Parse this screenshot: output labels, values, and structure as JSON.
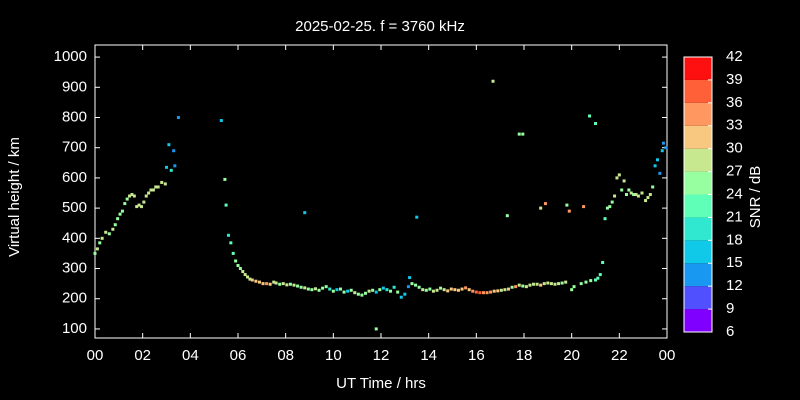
{
  "chart_data": {
    "type": "scatter",
    "title": "2025-02-25. f = 3760 kHz",
    "x_label": "UT Time / hrs",
    "y_label": "Virtual height / km",
    "colorbar_label": "SNR / dB",
    "xlim": [
      0,
      24
    ],
    "xticks": [
      {
        "value": 0,
        "label": "00"
      },
      {
        "value": 2,
        "label": "02"
      },
      {
        "value": 4,
        "label": "04"
      },
      {
        "value": 6,
        "label": "06"
      },
      {
        "value": 8,
        "label": "08"
      },
      10,
      12,
      14,
      16,
      18,
      20,
      22,
      {
        "value": 24,
        "label": "00"
      }
    ],
    "ylim": [
      70,
      1040
    ],
    "yticks": [
      100,
      200,
      300,
      400,
      500,
      600,
      700,
      800,
      900,
      1000
    ],
    "clim": [
      6,
      42
    ],
    "cticks": [
      6,
      9,
      12,
      15,
      18,
      21,
      24,
      27,
      30,
      33,
      36,
      39,
      42
    ],
    "colormap": [
      "#8000ff",
      "#5050ff",
      "#1898f0",
      "#10c8e8",
      "#30e8d0",
      "#60ffb8",
      "#98ffa0",
      "#c8e890",
      "#f8c880",
      "#ff9860",
      "#ff6038",
      "#ff1010"
    ],
    "x": [
      0,
      0.1,
      0.2,
      0.3,
      0.45,
      0.6,
      0.75,
      0.85,
      0.95,
      1.05,
      1.15,
      1.25,
      1.35,
      1.45,
      1.55,
      1.65,
      1.75,
      1.85,
      1.95,
      2.05,
      2.15,
      2.25,
      2.35,
      2.45,
      2.55,
      2.65,
      2.8,
      2.95,
      3.0,
      3.1,
      3.2,
      3.3,
      3.35,
      3.5,
      5.3,
      5.45,
      5.5,
      5.6,
      5.7,
      5.8,
      5.9,
      6.0,
      6.1,
      6.2,
      6.3,
      6.4,
      6.5,
      6.6,
      6.75,
      6.9,
      7.05,
      7.2,
      7.35,
      7.5,
      7.6,
      7.75,
      7.9,
      8.05,
      8.2,
      8.35,
      8.5,
      8.65,
      8.8,
      8.95,
      9.1,
      9.25,
      9.4,
      9.55,
      9.7,
      9.85,
      10.0,
      10.15,
      10.3,
      10.45,
      10.6,
      10.75,
      10.9,
      11.05,
      11.2,
      11.35,
      11.5,
      11.65,
      11.8,
      11.95,
      12.1,
      12.25,
      12.4,
      12.55,
      12.7,
      12.85,
      13.0,
      13.15,
      13.3,
      13.45,
      13.6,
      13.75,
      13.9,
      14.05,
      14.2,
      14.35,
      14.5,
      14.65,
      14.8,
      14.95,
      15.1,
      15.25,
      15.4,
      15.55,
      15.7,
      15.85,
      16.0,
      16.15,
      16.3,
      16.45,
      16.6,
      16.75,
      16.9,
      17.05,
      17.2,
      17.35,
      17.5,
      17.65,
      17.8,
      17.95,
      18.1,
      18.25,
      18.4,
      18.55,
      18.7,
      18.85,
      19.0,
      19.15,
      19.3,
      19.45,
      19.6,
      19.75,
      8.8,
      11.8,
      13.2,
      13.5,
      16.7,
      17.3,
      17.8,
      17.95,
      18.7,
      18.9,
      19.8,
      19.9,
      20.5,
      20.75,
      21.0,
      20.0,
      20.1,
      20.4,
      20.6,
      20.8,
      21.0,
      21.1,
      21.2,
      21.3,
      21.4,
      21.5,
      21.6,
      21.7,
      21.8,
      21.9,
      22.0,
      22.1,
      22.2,
      22.3,
      22.4,
      22.5,
      22.6,
      22.7,
      22.8,
      22.95,
      23.1,
      23.2,
      23.3,
      23.4,
      23.5,
      23.6,
      23.7,
      23.8,
      23.85,
      23.95
    ],
    "values": [
      350,
      365,
      385,
      400,
      420,
      415,
      430,
      445,
      465,
      480,
      490,
      515,
      530,
      540,
      545,
      540,
      505,
      510,
      505,
      520,
      540,
      550,
      560,
      560,
      570,
      570,
      585,
      580,
      635,
      710,
      625,
      690,
      640,
      800,
      790,
      595,
      510,
      410,
      385,
      350,
      325,
      310,
      300,
      290,
      280,
      272,
      265,
      262,
      258,
      255,
      250,
      250,
      248,
      255,
      252,
      248,
      250,
      246,
      248,
      245,
      242,
      238,
      236,
      232,
      230,
      233,
      228,
      235,
      240,
      232,
      225,
      230,
      232,
      222,
      225,
      228,
      220,
      215,
      212,
      218,
      225,
      228,
      222,
      230,
      235,
      230,
      225,
      238,
      222,
      205,
      215,
      240,
      250,
      245,
      238,
      230,
      228,
      232,
      225,
      228,
      235,
      230,
      226,
      232,
      230,
      228,
      232,
      236,
      230,
      225,
      222,
      220,
      220,
      220,
      222,
      225,
      226,
      228,
      230,
      232,
      238,
      240,
      245,
      242,
      240,
      245,
      248,
      248,
      245,
      250,
      252,
      250,
      248,
      250,
      252,
      255,
      485,
      100,
      270,
      470,
      920,
      475,
      745,
      745,
      500,
      515,
      510,
      490,
      505,
      805,
      780,
      230,
      240,
      250,
      255,
      260,
      262,
      268,
      280,
      320,
      465,
      500,
      505,
      520,
      540,
      600,
      610,
      560,
      590,
      545,
      560,
      550,
      545,
      545,
      540,
      550,
      525,
      535,
      545,
      570,
      640,
      660,
      615,
      690,
      715,
      700
    ],
    "snr": [
      26,
      27,
      26,
      27,
      27,
      26,
      27,
      26,
      26,
      24,
      25,
      24,
      25,
      27,
      28,
      27,
      27,
      28,
      27,
      27,
      28,
      27,
      28,
      27,
      28,
      27,
      28,
      27,
      15,
      15,
      18,
      12,
      12,
      14,
      15,
      24,
      21,
      18,
      21,
      22,
      24,
      24,
      26,
      27,
      27,
      28,
      29,
      30,
      30,
      31,
      32,
      33,
      30,
      27,
      27,
      26,
      27,
      28,
      26,
      27,
      26,
      25,
      27,
      26,
      26,
      27,
      25,
      26,
      24,
      18,
      24,
      16,
      26,
      24,
      15,
      26,
      27,
      25,
      26,
      24,
      27,
      26,
      17,
      26,
      15,
      20,
      26,
      18,
      26,
      15,
      17,
      14,
      24,
      26,
      26,
      27,
      24,
      26,
      27,
      28,
      26,
      27,
      30,
      31,
      32,
      30,
      31,
      33,
      30,
      34,
      36,
      36,
      35,
      33,
      33,
      30,
      31,
      28,
      27,
      30,
      26,
      33,
      27,
      26,
      27,
      28,
      27,
      27,
      30,
      28,
      27,
      27,
      28,
      27,
      26,
      27,
      15,
      24,
      15,
      15,
      27,
      24,
      24,
      24,
      27,
      33,
      24,
      33,
      33,
      21,
      21,
      24,
      26,
      24,
      26,
      24,
      22,
      22,
      21,
      21,
      21,
      24,
      24,
      24,
      27,
      27,
      27,
      24,
      27,
      24,
      24,
      27,
      24,
      27,
      27,
      27,
      27,
      27,
      27,
      24,
      15,
      15,
      12,
      15,
      12,
      12
    ]
  }
}
